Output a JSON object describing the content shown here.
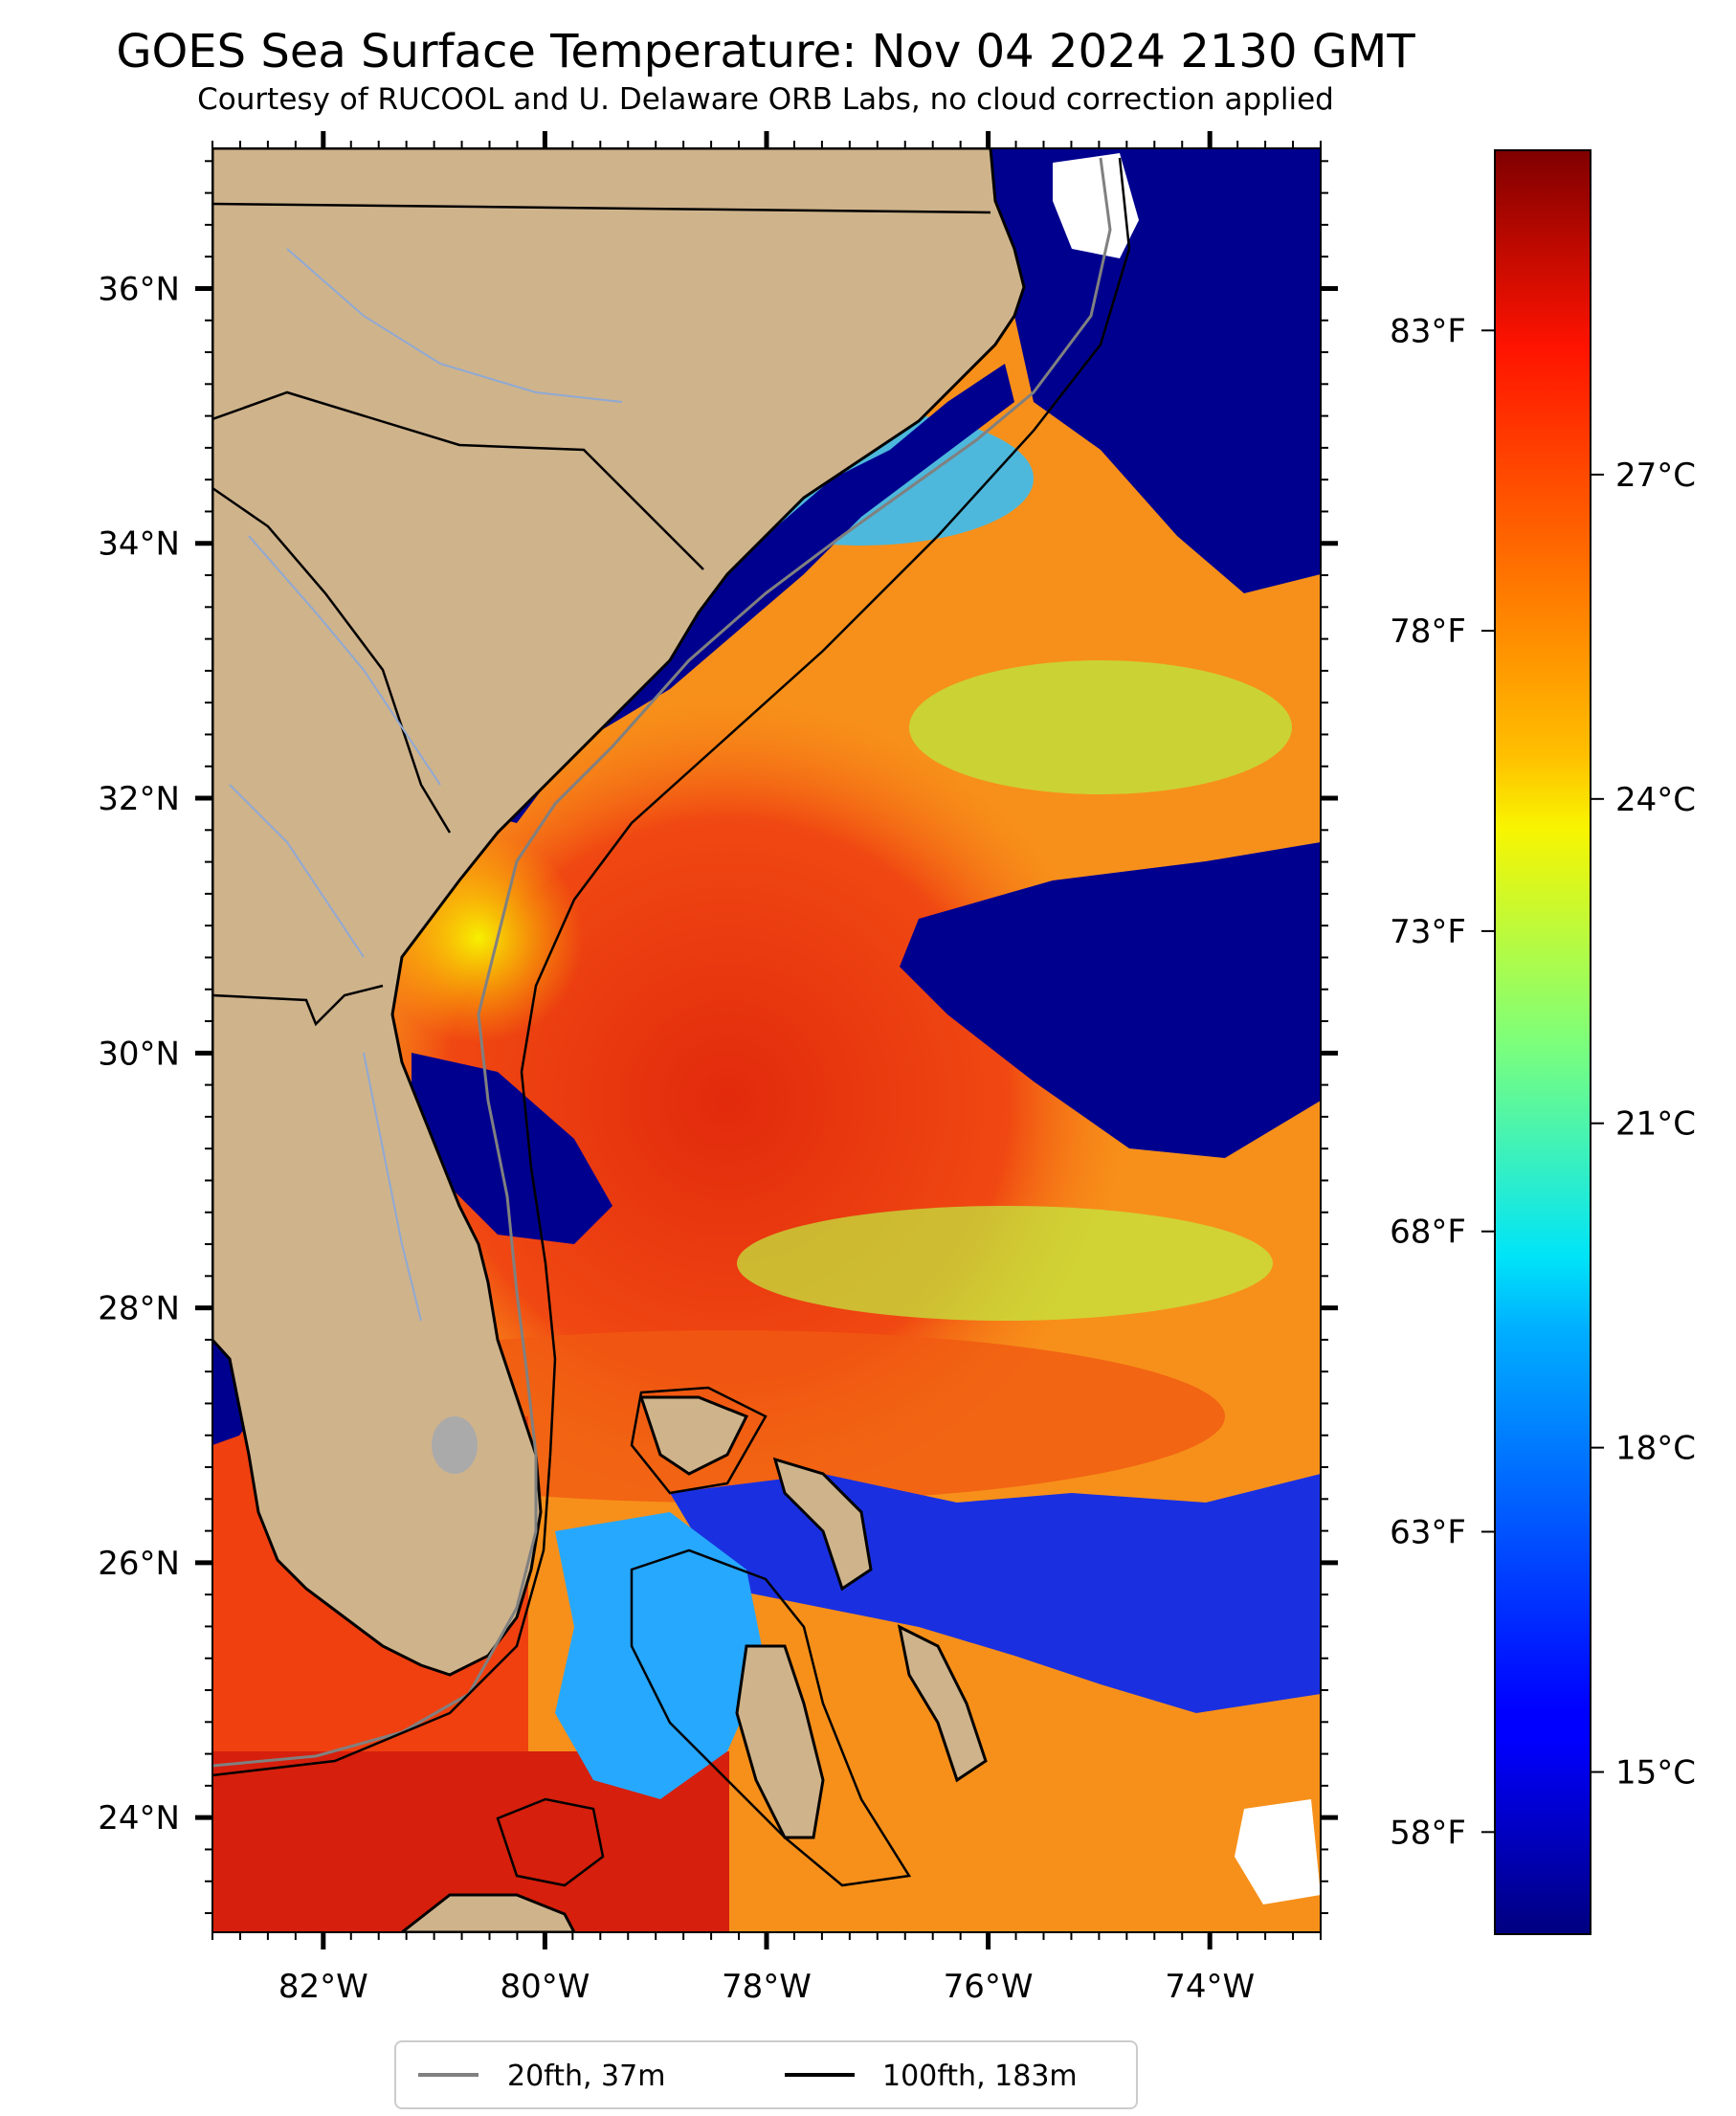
{
  "title": "GOES Sea Surface Temperature: Nov 04 2024 2130 GMT",
  "subtitle": "Courtesy of RUCOOL and U. Delaware ORB Labs, no cloud correction applied",
  "map": {
    "lon_range": [
      -83.0,
      -73.0
    ],
    "lat_range": [
      23.1,
      37.1
    ],
    "lat_ticks": [
      {
        "value": 36,
        "label": "36°N"
      },
      {
        "value": 34,
        "label": "34°N"
      },
      {
        "value": 32,
        "label": "32°N"
      },
      {
        "value": 30,
        "label": "30°N"
      },
      {
        "value": 28,
        "label": "28°N"
      },
      {
        "value": 26,
        "label": "26°N"
      },
      {
        "value": 24,
        "label": "24°N"
      }
    ],
    "lon_ticks": [
      {
        "value": -82,
        "label": "82°W"
      },
      {
        "value": -80,
        "label": "80°W"
      },
      {
        "value": -78,
        "label": "78°W"
      },
      {
        "value": -76,
        "label": "76°W"
      },
      {
        "value": -74,
        "label": "74°W"
      }
    ],
    "colors": {
      "land": "#cfb38b",
      "cold": "#00008f",
      "warm": "#e4260a",
      "state_border": "#000000",
      "rivers": "#8fa9d4",
      "isobath_20": "#808080",
      "isobath_100": "#000000"
    }
  },
  "colorbar": {
    "range_c": [
      13.5,
      30.0
    ],
    "celsius_ticks": [
      {
        "value": 27,
        "label": "27°C"
      },
      {
        "value": 24,
        "label": "24°C"
      },
      {
        "value": 21,
        "label": "21°C"
      },
      {
        "value": 18,
        "label": "18°C"
      },
      {
        "value": 15,
        "label": "15°C"
      }
    ],
    "fahrenheit_ticks": [
      {
        "value": 83,
        "label": "83°F"
      },
      {
        "value": 78,
        "label": "78°F"
      },
      {
        "value": 73,
        "label": "73°F"
      },
      {
        "value": 68,
        "label": "68°F"
      },
      {
        "value": 63,
        "label": "63°F"
      },
      {
        "value": 58,
        "label": "58°F"
      }
    ]
  },
  "legend": {
    "items": [
      {
        "label": "20fth, 37m",
        "color": "#808080"
      },
      {
        "label": "100fth, 183m",
        "color": "#000000"
      }
    ]
  }
}
